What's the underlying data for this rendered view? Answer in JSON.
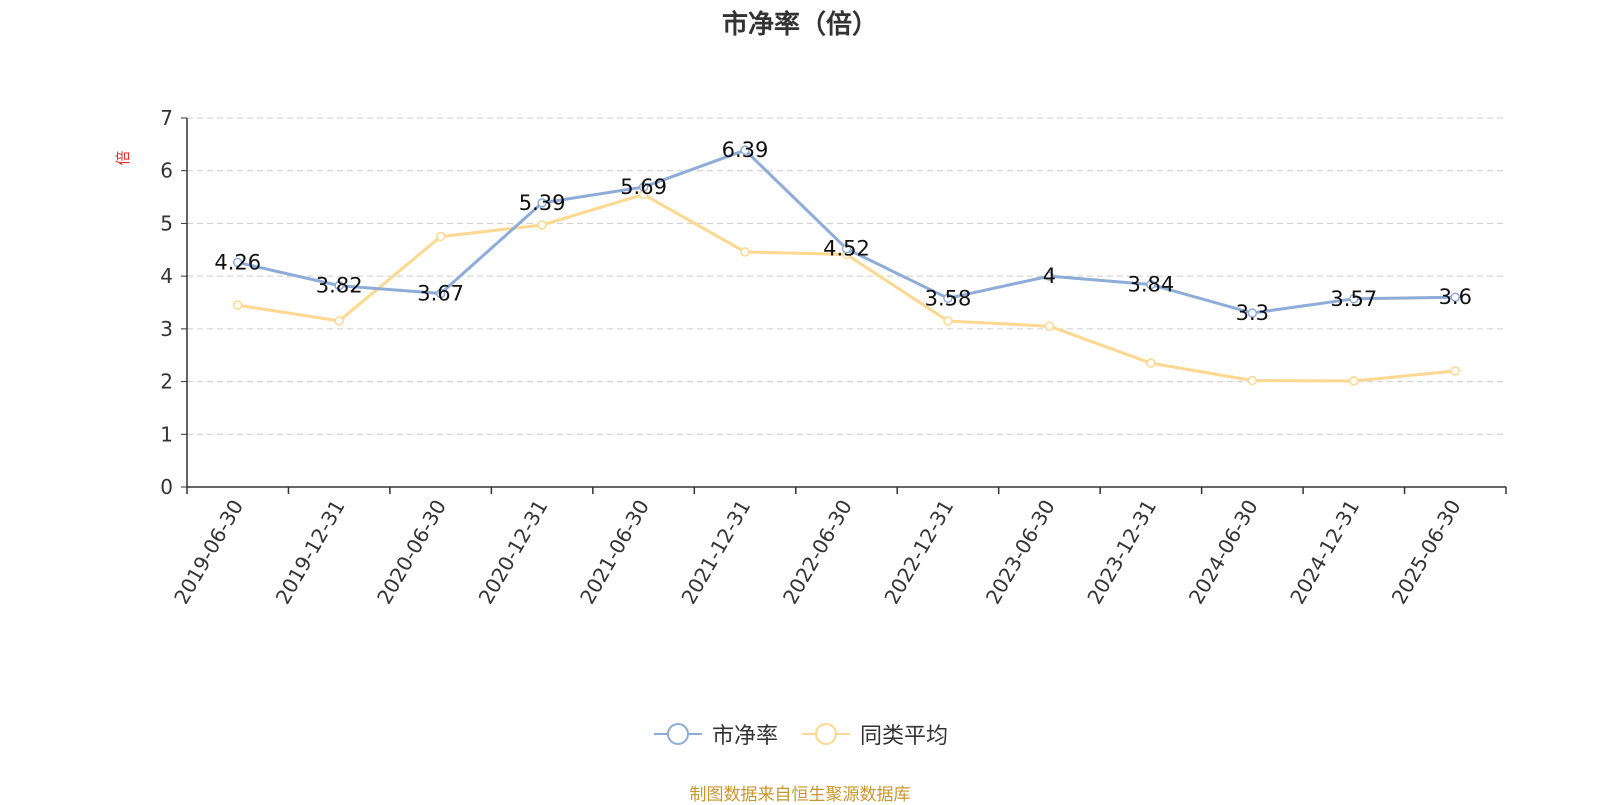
{
  "chart_data": {
    "type": "line",
    "title": "市净率（倍）",
    "ylabel": "倍",
    "xlabel": "",
    "ylim": [
      0,
      7
    ],
    "yticks": [
      0,
      1,
      2,
      3,
      4,
      5,
      6,
      7
    ],
    "grid": true,
    "legend_position": "bottom",
    "categories": [
      "2019-06-30",
      "2019-12-31",
      "2020-06-30",
      "2020-12-31",
      "2021-06-30",
      "2021-12-31",
      "2022-06-30",
      "2022-12-31",
      "2023-06-30",
      "2023-12-31",
      "2024-06-30",
      "2024-12-31",
      "2025-06-30"
    ],
    "series": [
      {
        "name": "市净率",
        "color": "#8eacd8",
        "values": [
          4.26,
          3.82,
          3.67,
          5.39,
          5.69,
          6.39,
          4.52,
          3.58,
          4,
          3.84,
          3.3,
          3.57,
          3.6
        ],
        "data_labels": [
          "4.26",
          "3.82",
          "3.67",
          "5.39",
          "5.69",
          "6.39",
          "4.52",
          "3.58",
          "4",
          "3.84",
          "3.3",
          "3.57",
          "3.6"
        ]
      },
      {
        "name": "同类平均",
        "color": "#fcd890",
        "values": [
          3.45,
          3.15,
          4.75,
          4.97,
          5.55,
          4.46,
          4.41,
          3.15,
          3.05,
          2.35,
          2.02,
          2.01,
          2.2
        ]
      }
    ]
  },
  "source_text": "制图数据来自恒生聚源数据库",
  "colors": {
    "axis": "#333333",
    "grid": "#cccccc",
    "ylabel": "#e0312d",
    "source": "#c8962f"
  }
}
